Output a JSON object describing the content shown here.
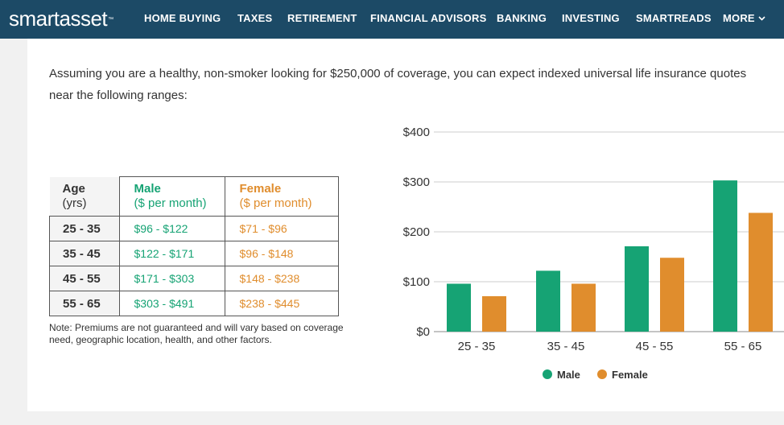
{
  "nav": {
    "logo_text": "smartasset",
    "logo_tm": "™",
    "items": [
      {
        "label": "HOME BUYING"
      },
      {
        "label": "TAXES"
      },
      {
        "label": "RETIREMENT"
      },
      {
        "label": "FINANCIAL ADVISORS"
      },
      {
        "label": "BANKING"
      },
      {
        "label": "INVESTING"
      },
      {
        "label": "SMARTREADS"
      },
      {
        "label": "MORE"
      }
    ]
  },
  "intro_text": "Assuming you are a healthy, non-smoker looking for $250,000 of coverage, you can expect indexed universal life insurance quotes near the following ranges:",
  "table": {
    "headers": {
      "age": "Age",
      "age_sub": "(yrs)",
      "male": "Male",
      "male_sub": "($ per month)",
      "female": "Female",
      "female_sub": "($ per month)"
    },
    "rows": [
      {
        "age": "25 - 35",
        "male": "$96 - $122",
        "female": "$71 - $96"
      },
      {
        "age": "35 - 45",
        "male": "$122 - $171",
        "female": "$96 - $148"
      },
      {
        "age": "45 - 55",
        "male": "$171 - $303",
        "female": "$148 - $238"
      },
      {
        "age": "55 - 65",
        "male": "$303 - $491",
        "female": "$238 - $445"
      }
    ]
  },
  "note": "Note: Premiums are not guaranteed and will vary based on coverage need, geographic location, health, and other factors.",
  "colors": {
    "male": "#16a374",
    "female": "#e08d2d",
    "nav_bg": "#1c4a66"
  },
  "chart_data": {
    "type": "bar",
    "categories": [
      "25 - 35",
      "35 - 45",
      "45 - 55",
      "55 - 65"
    ],
    "series": [
      {
        "name": "Male",
        "values": [
          96,
          122,
          171,
          303
        ],
        "color": "#16a374"
      },
      {
        "name": "Female",
        "values": [
          71,
          96,
          148,
          238
        ],
        "color": "#e08d2d"
      }
    ],
    "yticks": [
      "$0",
      "$100",
      "$200",
      "$300",
      "$400"
    ],
    "ylim": [
      0,
      400
    ],
    "grid": true,
    "legend": "bottom-center"
  }
}
